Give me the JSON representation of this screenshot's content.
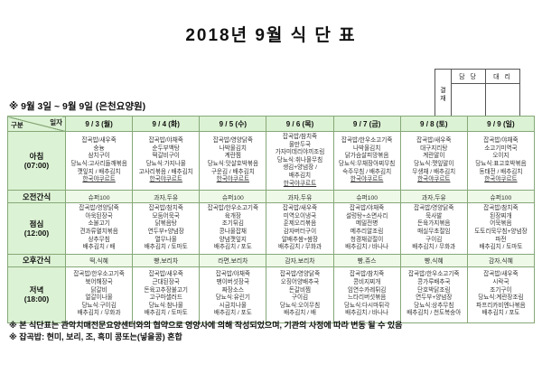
{
  "title": "2018년 9월 식 단 표",
  "approval": {
    "stamp": "결재",
    "col_manager": "담 당",
    "col_deputy": "대 리"
  },
  "subtitle": "※ 9월 3일 ~ 9월 9일 (은천요양원)",
  "colors": {
    "header_bg": "#dcf2d4",
    "snack_bg": "#eef9e8",
    "border": "#86a878"
  },
  "table": {
    "corner_top": "일자",
    "corner_bottom": "구분",
    "underline_item": "한국야쿠르트",
    "days": [
      "9 / 3 (월)",
      "9 / 4 (화)",
      "9 / 5 (수)",
      "9 / 6 (목)",
      "9 / 7 (금)",
      "9 / 8 (토)",
      "9 / 9 (일)"
    ],
    "rows": [
      {
        "label": "아침",
        "time": "(07:00)",
        "type": "menu",
        "css": "r-breakfast",
        "cells": [
          [
            "잡곡밥/새우죽",
            "숭늉",
            "삼치구이",
            "당뇨식:고사리들깨볶음",
            "깻잎지 / 배추김치",
            "한국야쿠르트"
          ],
          [
            "잡곡밥/야채죽",
            "순두부백탕",
            "떡갈비구이",
            "당뇨식:가지나물",
            "고사리볶음 / 배추김치",
            "한국야쿠르트"
          ],
          [
            "잡곡밥/영양닭죽",
            "나박물김치",
            "계란찜",
            "당뇨식:맛살호박볶음",
            "구운김 / 배추김치",
            "한국야쿠르트"
          ],
          [
            "잡곡밥/참치죽",
            "물만두국",
            "가자미데리야끼조림",
            "당뇨식:취나물무침",
            "생김+양념장 /",
            "배추김치",
            "한국야쿠르트"
          ],
          [
            "잡곡밥/한우소고기죽",
            "나박물김치",
            "닭가슴살피망볶음",
            "당뇨식:무채장아찌무침",
            "숙주무침 / 배추김치",
            "한국야쿠르트"
          ],
          [
            "잡곡밥/새우죽",
            "대구지리탕",
            "계란말이",
            "당뇨식:깻잎말이",
            "무생채 / 배추김치",
            "한국야쿠르트"
          ],
          [
            "잡곡밥/야채죽",
            "소고기미역국",
            "오이지",
            "당뇨식:표고호박볶음",
            "동태전 / 배추김치",
            "한국야쿠르트"
          ]
        ]
      },
      {
        "label": "오전간식",
        "time": "",
        "type": "snack",
        "css": "r-snack1",
        "cells": [
          [
            "슈퍼100"
          ],
          [
            "과자,두유"
          ],
          [
            "슈퍼100"
          ],
          [
            "과자,두유"
          ],
          [
            "슈퍼100"
          ],
          [
            "과자,두유"
          ],
          [
            "슈퍼100"
          ]
        ]
      },
      {
        "label": "점심",
        "time": "(12:00)",
        "type": "menu",
        "css": "r-lunch",
        "cells": [
          [
            "잡곡밥/영양닭죽",
            "아욱된장국",
            "소불고기",
            "견과류멸치볶음",
            "상추무침",
            "배추김치 / 배"
          ],
          [
            "잡곡밥/참치죽",
            "모둠어묵국",
            "닭볶음탕",
            "연두부+양념장",
            "열무나물",
            "배추김치 / 토마토"
          ],
          [
            "잡곡밥/한우소고기죽",
            "육개장",
            "조기튀김",
            "콩나물잡채",
            "양념깻잎지",
            "배추김치 / 포도"
          ],
          [
            "잡곡밥/새우죽",
            "미역오이냉국",
            "훈제오리볶음",
            "감자버터구이",
            "알배추쌈+쌈장",
            "배추김치 / 무화과"
          ],
          [
            "잡곡밥/야채죽",
            "설렁탕+소면사리",
            "메밀전병",
            "메추리알조림",
            "청경채겉절이",
            "배추김치 / 바나나"
          ],
          [
            "잡곡밥/영양닭죽",
            "묵사발",
            "돈육가지볶음",
            "매실무초절임",
            "구이김",
            "배추김치 / 무화과"
          ],
          [
            "잡곡밥/참치죽",
            "된장찌개",
            "어묵볶음",
            "도토리묵무침+양념장",
            "파전",
            "배추김치 / 토마토"
          ]
        ]
      },
      {
        "label": "오후간식",
        "time": "",
        "type": "snack",
        "css": "r-snack2",
        "cells": [
          [
            "떡,식혜"
          ],
          [
            "빵,보리차"
          ],
          [
            "라면,보리차"
          ],
          [
            "감자,보리차"
          ],
          [
            "빵,쥬스"
          ],
          [
            "빵,식혜"
          ],
          [
            "감자,식혜"
          ]
        ]
      },
      {
        "label": "저녁",
        "time": "(18:00)",
        "type": "menu",
        "css": "r-dinner",
        "cells": [
          [
            "잡곡밥/한우소고기죽",
            "북어해장국",
            "닭갈비",
            "얼갈이나물",
            "당뇨식:구이김",
            "배추김치 / 무화과"
          ],
          [
            "잡곡밥/새우죽",
            "근대된장국",
            "돈육고추장불고기",
            "고구마샐러드",
            "당뇨식:참나물",
            "배추김치 / 토마토"
          ],
          [
            "잡곡밥/야채죽",
            "팽이버섯장국",
            "짜장소스",
            "당뇨식:유린기",
            "시금치나물",
            "배추김치 / 포도"
          ],
          [
            "잡곡밥/영양닭죽",
            "오징어양배추국",
            "돈갈비찜",
            "구이김",
            "당뇨식:오이무침",
            "배추김치 / 배"
          ],
          [
            "잡곡밥/참치죽",
            "콩비지찌개",
            "임연수카레튀김",
            "느타리버섯볶음",
            "당뇨식:다시마튀각",
            "배추김치 / 바나나"
          ],
          [
            "잡곡밥/한우소고기죽",
            "콩가루배추국",
            "단호박닭조림",
            "연두부+양념장",
            "당뇨식:상추무침",
            "배추김치 / 천도복숭아"
          ],
          [
            "잡곡밥/새우죽",
            "시락국",
            "조기구이",
            "당뇨식:계란장조림",
            "파프리카비엔나볶음",
            "배추김치 / 포도"
          ]
        ]
      }
    ]
  },
  "notes": {
    "note1": "※ 본 식단표는 관악치매전문요양센터와의 협약으로 영양사에 의해 작성되었으며, 기관의 사정에 따라 변동 될 수 있음",
    "note2": "※ 잡곡밥: 현미, 보리, 조, 흑미 콩또는(넣을콩) 혼합"
  }
}
